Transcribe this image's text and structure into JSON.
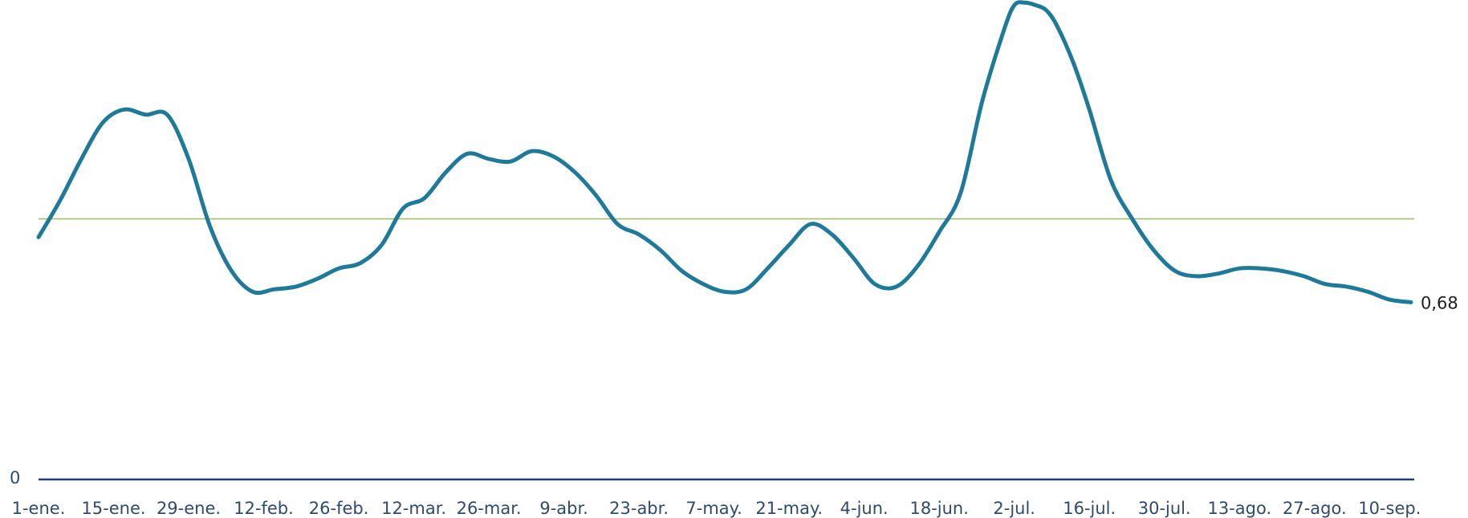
{
  "chart_data": {
    "type": "line",
    "title": "",
    "xlabel": "",
    "ylabel": "",
    "x_ticks": [
      "1-ene.",
      "15-ene.",
      "29-ene.",
      "12-feb.",
      "26-feb.",
      "12-mar.",
      "26-mar.",
      "9-abr.",
      "23-abr.",
      "7-may.",
      "21-may.",
      "4-jun.",
      "18-jun.",
      "2-jul.",
      "16-jul.",
      "30-jul.",
      "13-ago.",
      "27-ago.",
      "10-sep."
    ],
    "y_tick_labels": [
      {
        "value": 0,
        "label": "0"
      }
    ],
    "ylim": [
      0,
      1.8
    ],
    "reference_line": {
      "y": 1.0,
      "color": "#9bbb59"
    },
    "end_label": "0,68",
    "colors": {
      "series": "#1f7a9a",
      "axis": "#1f3f6f",
      "tick_text": "#2f4a6a"
    },
    "series": [
      {
        "x_dates": [
          "01-01",
          "01-05",
          "01-09",
          "01-13",
          "01-17",
          "01-21",
          "01-25",
          "01-29",
          "02-02",
          "02-06",
          "02-10",
          "02-14",
          "02-18",
          "02-22",
          "02-26",
          "03-02",
          "03-06",
          "03-10",
          "03-14",
          "03-18",
          "03-22",
          "03-26",
          "03-30",
          "04-03",
          "04-07",
          "04-11",
          "04-15",
          "04-19",
          "04-23",
          "04-27",
          "05-01",
          "05-05",
          "05-09",
          "05-13",
          "05-17",
          "05-21",
          "05-25",
          "05-29",
          "06-02",
          "06-06",
          "06-10",
          "06-14",
          "06-18",
          "06-22",
          "06-26",
          "06-30",
          "07-02",
          "07-04",
          "07-06",
          "07-08",
          "07-10",
          "07-13",
          "07-16",
          "07-20",
          "07-24",
          "07-28",
          "08-01",
          "08-05",
          "08-09",
          "08-13",
          "08-17",
          "08-21",
          "08-25",
          "08-29",
          "09-02",
          "09-06",
          "09-10",
          "09-14"
        ],
        "values": [
          0.93,
          1.07,
          1.23,
          1.37,
          1.42,
          1.4,
          1.4,
          1.23,
          0.97,
          0.8,
          0.72,
          0.73,
          0.74,
          0.77,
          0.81,
          0.83,
          0.9,
          1.04,
          1.08,
          1.18,
          1.25,
          1.23,
          1.22,
          1.26,
          1.24,
          1.18,
          1.09,
          0.98,
          0.94,
          0.88,
          0.8,
          0.75,
          0.72,
          0.73,
          0.81,
          0.9,
          0.98,
          0.94,
          0.85,
          0.75,
          0.74,
          0.82,
          0.95,
          1.1,
          1.45,
          1.72,
          1.82,
          1.83,
          1.82,
          1.8,
          1.74,
          1.6,
          1.42,
          1.15,
          1.0,
          0.88,
          0.8,
          0.78,
          0.79,
          0.81,
          0.81,
          0.8,
          0.78,
          0.75,
          0.74,
          0.72,
          0.69,
          0.68
        ]
      }
    ]
  }
}
